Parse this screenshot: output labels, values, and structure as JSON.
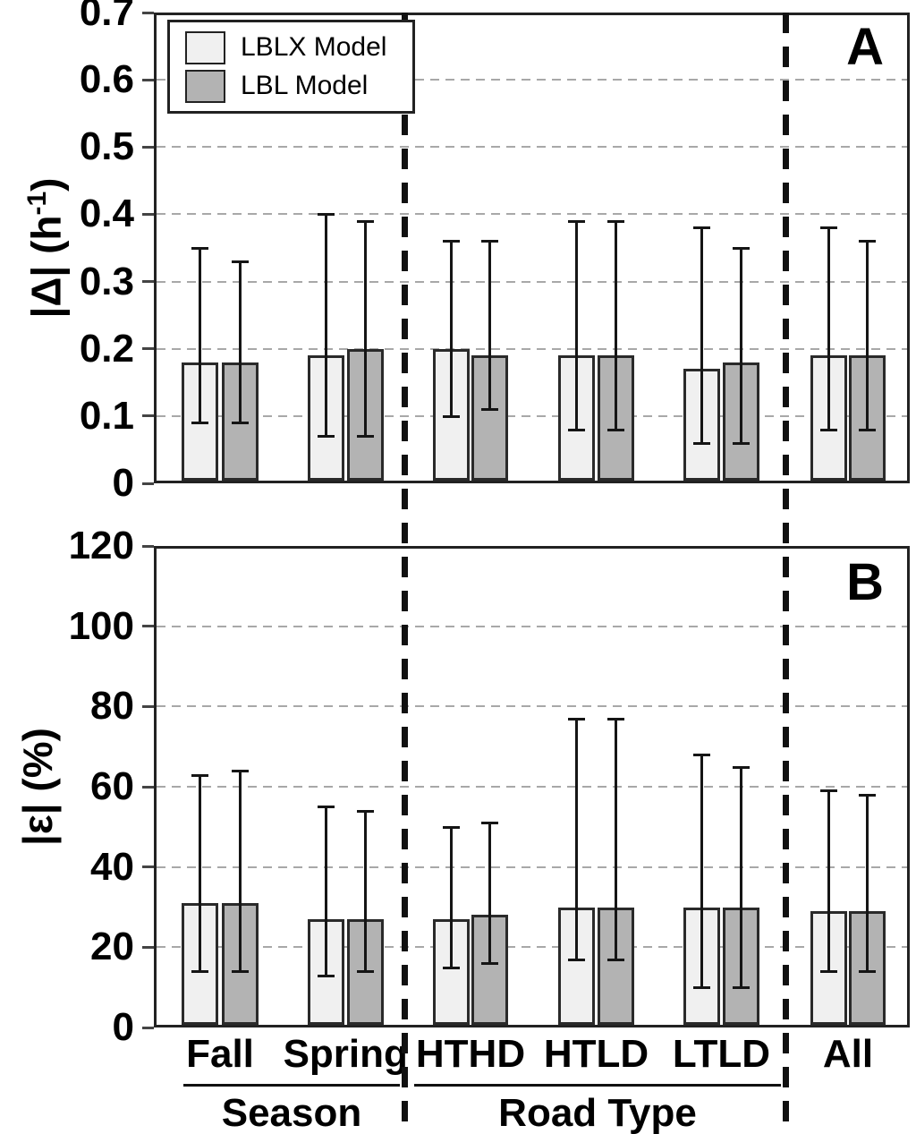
{
  "figure": {
    "panel_a_letter": "A",
    "panel_b_letter": "B",
    "panel_a_ylabel": {
      "pre": "|Δ| (h",
      "sup": "-1",
      "post": ")"
    },
    "panel_b_ylabel": "|ε| (%)"
  },
  "legend": {
    "items": [
      {
        "label": "LBLX Model",
        "color": "#f0f0f0"
      },
      {
        "label": "LBL Model",
        "color": "#b3b3b3"
      }
    ]
  },
  "x_axis": {
    "categories": [
      "Fall",
      "Spring",
      "HTHD",
      "HTLD",
      "LTLD",
      "All"
    ],
    "groups": [
      {
        "label": "Season",
        "categories": [
          "Fall",
          "Spring"
        ]
      },
      {
        "label": "Road Type",
        "categories": [
          "HTHD",
          "HTLD",
          "LTLD"
        ]
      }
    ]
  },
  "colors": {
    "bar_border": "#2a2a2a",
    "error_bar": "#151515",
    "gridline": "#a8a8a8",
    "separator": "#111111",
    "axis": "#222222"
  },
  "chart_data": [
    {
      "type": "bar",
      "panel": "A",
      "title": "",
      "xlabel": "",
      "ylabel": "|Δ| (h⁻¹)",
      "ylim": [
        0,
        0.7
      ],
      "ytick_values": [
        0.7,
        0.6,
        0.5,
        0.4,
        0.3,
        0.2,
        0.1,
        0
      ],
      "ytick_labels": [
        "0.7",
        "0.6",
        "0.5",
        "0.4",
        "0.3",
        "0.2",
        "0.1",
        "0"
      ],
      "grid": "dashed-horizontal",
      "legend_position": "top-left",
      "categories": [
        "Fall",
        "Spring",
        "HTHD",
        "HTLD",
        "LTLD",
        "All"
      ],
      "series": [
        {
          "name": "LBLX Model",
          "values": [
            0.18,
            0.19,
            0.2,
            0.19,
            0.17,
            0.19
          ],
          "whisker_high": [
            0.35,
            0.4,
            0.36,
            0.39,
            0.38,
            0.38
          ],
          "whisker_low": [
            0.09,
            0.07,
            0.1,
            0.08,
            0.06,
            0.08
          ]
        },
        {
          "name": "LBL Model",
          "values": [
            0.18,
            0.2,
            0.19,
            0.19,
            0.18,
            0.19
          ],
          "whisker_high": [
            0.33,
            0.39,
            0.36,
            0.39,
            0.35,
            0.36
          ],
          "whisker_low": [
            0.09,
            0.07,
            0.11,
            0.08,
            0.06,
            0.08
          ]
        }
      ]
    },
    {
      "type": "bar",
      "panel": "B",
      "title": "",
      "xlabel": "",
      "ylabel": "|ε| (%)",
      "ylim": [
        0,
        120
      ],
      "ytick_values": [
        120,
        100,
        80,
        60,
        40,
        20,
        0
      ],
      "ytick_labels": [
        "120",
        "100",
        "80",
        "60",
        "40",
        "20",
        "0"
      ],
      "grid": "dashed-horizontal",
      "legend_position": "none",
      "categories": [
        "Fall",
        "Spring",
        "HTHD",
        "HTLD",
        "LTLD",
        "All"
      ],
      "series": [
        {
          "name": "LBLX Model",
          "values": [
            31,
            27,
            27,
            30,
            30,
            29
          ],
          "whisker_high": [
            63,
            55,
            50,
            77,
            68,
            59
          ],
          "whisker_low": [
            14,
            13,
            15,
            17,
            10,
            14
          ]
        },
        {
          "name": "LBL Model",
          "values": [
            31,
            27,
            28,
            30,
            30,
            29
          ],
          "whisker_high": [
            64,
            54,
            51,
            77,
            65,
            58
          ],
          "whisker_low": [
            14,
            14,
            16,
            17,
            10,
            14
          ]
        }
      ]
    }
  ]
}
